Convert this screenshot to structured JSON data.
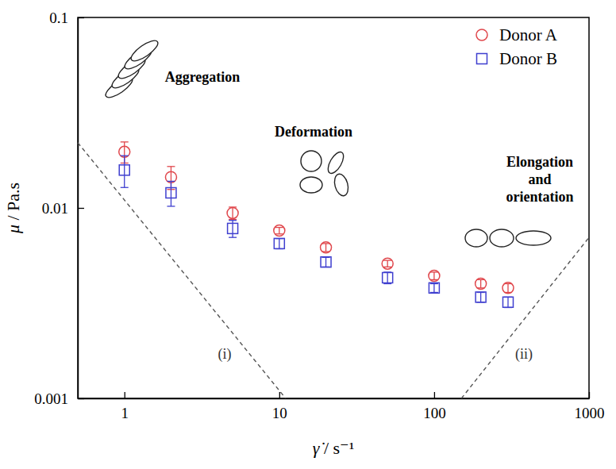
{
  "chart_data": {
    "type": "scatter",
    "x_label": "γ̇ / s⁻¹",
    "y_label": "μ / Pa.s",
    "log": true,
    "legend": "top-right",
    "xlim": [
      0.5,
      1000
    ],
    "ylim": [
      0.001,
      0.1
    ],
    "xticks": [
      1,
      10,
      100,
      1000
    ],
    "yticks": [
      0.001,
      0.01,
      0.1
    ],
    "x": [
      1,
      2,
      5,
      10,
      20,
      50,
      100,
      200,
      300
    ],
    "series": [
      {
        "name": "Donor A",
        "color": "#e0474c",
        "marker": "circle",
        "values": [
          0.0197,
          0.0145,
          0.0094,
          0.0076,
          0.0062,
          0.0051,
          0.0044,
          0.004,
          0.0038
        ],
        "errors": [
          0.0025,
          0.002,
          0.0007,
          0.0003,
          0.0003,
          0.0002,
          0.0002,
          0.0002,
          0.0002
        ]
      },
      {
        "name": "Donor B",
        "color": "#3f3fcf",
        "marker": "square",
        "values": [
          0.0158,
          0.012,
          0.0078,
          0.0065,
          0.0052,
          0.0043,
          0.0038,
          0.0034,
          0.0032
        ],
        "errors": [
          0.003,
          0.0018,
          0.0008,
          0.0004,
          0.0003,
          0.0003,
          0.0002,
          0.0002,
          0.0002
        ]
      }
    ],
    "reference_lines": [
      {
        "label": "(i)",
        "x": [
          0.5,
          11
        ],
        "values": [
          0.022,
          0.001
        ],
        "color": "#555555",
        "line_style": "dashed"
      },
      {
        "label": "(ii)",
        "x": [
          150,
          1000
        ],
        "values": [
          0.001,
          0.007
        ],
        "color": "#555555",
        "line_style": "dashed"
      }
    ],
    "annotations": [
      "Aggregation",
      "Deformation",
      "Elongation and orientation"
    ]
  }
}
